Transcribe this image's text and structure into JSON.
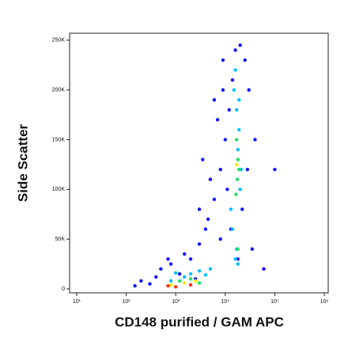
{
  "chart_data": {
    "type": "scatter",
    "xlabel": "CD148 purified / GAM APC",
    "ylabel": "Side Scatter",
    "xscale": "log",
    "xlim": [
      7.2,
      1200000
    ],
    "xticks": [
      {
        "value": 10,
        "label": "10¹"
      },
      {
        "value": 100,
        "label": "10²"
      },
      {
        "value": 1000,
        "label": "10³"
      },
      {
        "value": 10000,
        "label": "10⁴"
      },
      {
        "value": 100000,
        "label": "10⁵"
      },
      {
        "value": 1000000,
        "label": "10⁶"
      }
    ],
    "ylim": [
      -4000,
      257000
    ],
    "yticks": [
      0,
      {
        "value": 50000,
        "label": "50K"
      },
      {
        "value": 100000,
        "label": "100K"
      },
      {
        "value": 150000,
        "label": "150K"
      },
      {
        "value": 200000,
        "label": "200K"
      },
      {
        "value": 250000,
        "label": "250K"
      }
    ],
    "series": [
      {
        "color": "#1010ff",
        "x": [
          300,
          500,
          800,
          1200,
          2000,
          3000,
          4000,
          6000,
          8000,
          10000,
          12000,
          14000,
          16000,
          20000,
          25000,
          30000,
          40000,
          5000,
          7000,
          9000,
          3000,
          2500,
          1500,
          700,
          400,
          200,
          150,
          11000,
          13000,
          18000,
          22000,
          28000,
          35000,
          60000,
          100000,
          9000,
          6000,
          4500,
          3500,
          8000
        ],
        "y": [
          5000,
          20000,
          25000,
          15000,
          30000,
          45000,
          60000,
          90000,
          120000,
          150000,
          180000,
          210000,
          240000,
          245000,
          230000,
          200000,
          150000,
          110000,
          170000,
          200000,
          80000,
          10000,
          35000,
          30000,
          12000,
          8000,
          3000,
          100000,
          60000,
          30000,
          80000,
          120000,
          40000,
          20000,
          120000,
          230000,
          190000,
          70000,
          130000,
          50000
        ]
      },
      {
        "color": "#00c0ff",
        "x": [
          15000,
          17000,
          19000,
          16000,
          18000,
          20000,
          14000,
          17000,
          19000,
          21000,
          16000,
          18000,
          2000,
          3000,
          1500,
          4000,
          800,
          1000,
          5000,
          13000
        ],
        "y": [
          200000,
          180000,
          160000,
          220000,
          140000,
          100000,
          60000,
          40000,
          190000,
          120000,
          30000,
          25000,
          15000,
          18000,
          12000,
          14000,
          8000,
          16000,
          20000,
          80000
        ]
      },
      {
        "color": "#20e060",
        "x": [
          17000,
          18000,
          17500,
          16500,
          19000,
          18000,
          2000,
          1200,
          3000
        ],
        "y": [
          150000,
          130000,
          110000,
          95000,
          120000,
          40000,
          10000,
          8000,
          6000
        ]
      },
      {
        "color": "#f0f000",
        "x": [
          1500,
          2500,
          800,
          17000
        ],
        "y": [
          6000,
          8000,
          4000,
          125000
        ]
      },
      {
        "color": "#ff3000",
        "x": [
          700,
          1000,
          2000
        ],
        "y": [
          3000,
          2000,
          4000
        ]
      }
    ]
  }
}
